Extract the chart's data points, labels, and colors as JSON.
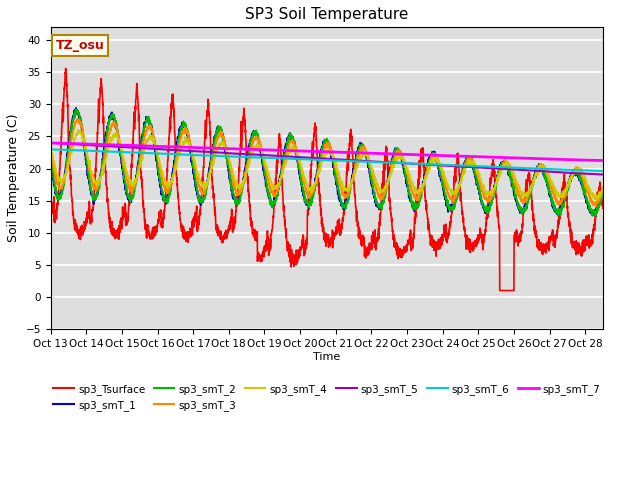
{
  "title": "SP3 Soil Temperature",
  "xlabel": "Time",
  "ylabel": "Soil Temperature (C)",
  "xlim": [
    0,
    15.5
  ],
  "ylim": [
    -5,
    42
  ],
  "yticks": [
    -5,
    0,
    5,
    10,
    15,
    20,
    25,
    30,
    35,
    40
  ],
  "xtick_labels": [
    "Oct 13",
    "Oct 14",
    "Oct 15",
    "Oct 16",
    "Oct 17",
    "Oct 18",
    "Oct 19",
    "Oct 20",
    "Oct 21",
    "Oct 22",
    "Oct 23",
    "Oct 24",
    "Oct 25",
    "Oct 26",
    "Oct 27",
    "Oct 28"
  ],
  "annotation_text": "TZ_osu",
  "annotation_box_color": "#FFFFF0",
  "annotation_text_color": "#CC0000",
  "annotation_border_color": "#AA8800",
  "series": [
    {
      "name": "sp3_Tsurface",
      "color": "#FF0000",
      "lw": 1.2
    },
    {
      "name": "sp3_smT_1",
      "color": "#0000CC",
      "lw": 1.2
    },
    {
      "name": "sp3_smT_2",
      "color": "#00BB00",
      "lw": 1.2
    },
    {
      "name": "sp3_smT_3",
      "color": "#FF8800",
      "lw": 1.2
    },
    {
      "name": "sp3_smT_4",
      "color": "#CCCC00",
      "lw": 1.2
    },
    {
      "name": "sp3_smT_5",
      "color": "#9900CC",
      "lw": 1.5
    },
    {
      "name": "sp3_smT_6",
      "color": "#00CCCC",
      "lw": 1.5
    },
    {
      "name": "sp3_smT_7",
      "color": "#FF00FF",
      "lw": 2.0
    }
  ]
}
